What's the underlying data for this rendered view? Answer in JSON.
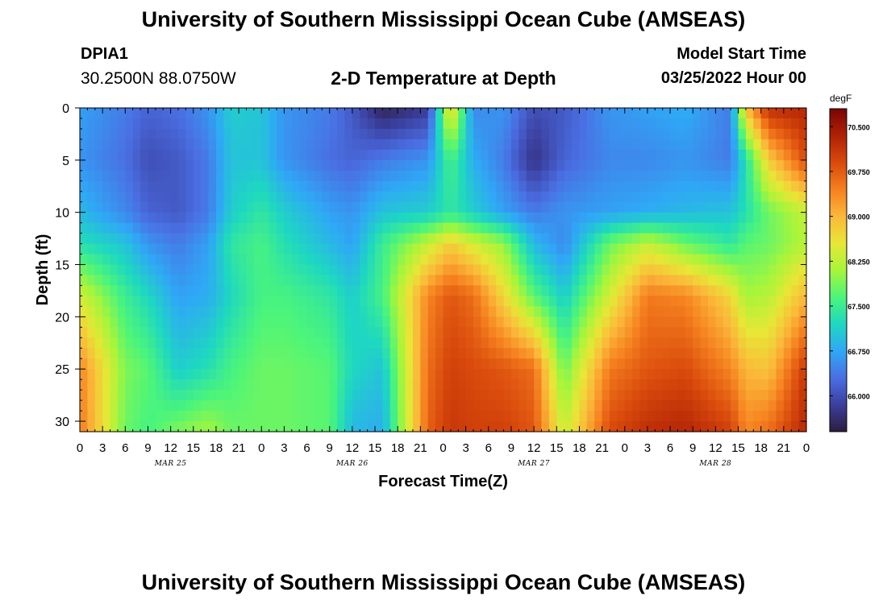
{
  "header": {
    "title": "University of Southern Mississippi Ocean Cube (AMSEAS)",
    "station_id": "DPIA1",
    "station_coords": "30.2500N  88.0750W",
    "plot_title": "2-D Temperature at Depth",
    "model_start_label": "Model Start Time",
    "model_start_value": "03/25/2022 Hour 00"
  },
  "footer": {
    "title": "University of Southern Mississippi Ocean Cube (AMSEAS)"
  },
  "chart_data": {
    "type": "heatmap",
    "title": "2-D Temperature at Depth",
    "xlabel": "Forecast Time(Z)",
    "ylabel": "Depth (ft)",
    "xlim": [
      0,
      96
    ],
    "ylim": [
      0,
      31
    ],
    "y_inverted": true,
    "x_tick_labels": [
      "0",
      "3",
      "6",
      "9",
      "12",
      "15",
      "18",
      "21",
      "0",
      "3",
      "6",
      "9",
      "12",
      "15",
      "18",
      "21",
      "0",
      "3",
      "6",
      "9",
      "12",
      "15",
      "18",
      "21",
      "0",
      "3",
      "6",
      "9",
      "12",
      "15",
      "18",
      "21",
      "0"
    ],
    "date_labels": [
      {
        "label": "MAR 25",
        "hour": 12
      },
      {
        "label": "MAR 26",
        "hour": 36
      },
      {
        "label": "MAR 27",
        "hour": 60
      },
      {
        "label": "MAR 28",
        "hour": 84
      }
    ],
    "y_ticks": [
      0,
      5,
      10,
      15,
      20,
      25,
      30
    ],
    "colorbar": {
      "unit": "degF",
      "min": 65.4,
      "max": 70.8,
      "ticks": [
        "66.000",
        "66.750",
        "67.500",
        "68.250",
        "69.000",
        "69.750",
        "70.500"
      ],
      "colors": [
        "#2d1e3e",
        "#3b3f9e",
        "#4a6fe3",
        "#2fa8f6",
        "#1ed8c0",
        "#4cf57a",
        "#a8f53a",
        "#e8e636",
        "#fbb83a",
        "#f5801f",
        "#d94a0c",
        "#b02106",
        "#7a0403"
      ]
    },
    "grid_hours": [
      0,
      6,
      9,
      13,
      17,
      20,
      24,
      27,
      33,
      36,
      40,
      46,
      49,
      52,
      56,
      60,
      64,
      70,
      75,
      80,
      86,
      88,
      91,
      96
    ],
    "grid_depths": [
      0,
      5,
      10,
      13,
      18,
      25,
      31
    ],
    "temperature_degF": [
      [
        66.7,
        66.4,
        66.2,
        66.3,
        66.6,
        67.1,
        67.0,
        66.6,
        66.4,
        66.1,
        65.5,
        65.8,
        68.8,
        66.5,
        66.6,
        66.0,
        66.1,
        66.6,
        66.7,
        66.8,
        66.4,
        68.9,
        70.2,
        70.3
      ],
      [
        66.6,
        66.3,
        66.0,
        66.1,
        66.4,
        67.0,
        67.0,
        66.6,
        66.3,
        66.2,
        66.4,
        66.6,
        67.6,
        66.8,
        66.4,
        65.7,
        66.2,
        66.5,
        66.5,
        66.6,
        66.4,
        67.3,
        68.8,
        69.9
      ],
      [
        66.9,
        66.5,
        66.2,
        66.1,
        66.4,
        67.1,
        67.4,
        67.1,
        66.7,
        66.6,
        67.0,
        67.1,
        67.4,
        67.1,
        66.7,
        66.4,
        66.6,
        66.7,
        66.8,
        66.9,
        67.0,
        67.3,
        67.8,
        68.3
      ],
      [
        67.3,
        67.0,
        66.6,
        66.4,
        66.7,
        67.4,
        67.6,
        67.3,
        66.9,
        66.7,
        67.5,
        68.3,
        68.8,
        68.4,
        68.0,
        66.9,
        66.5,
        67.8,
        68.3,
        67.8,
        67.4,
        67.7,
        67.8,
        68.2
      ],
      [
        68.4,
        67.5,
        67.2,
        66.7,
        66.8,
        67.2,
        67.6,
        67.6,
        67.4,
        67.1,
        67.6,
        69.4,
        69.8,
        69.6,
        68.7,
        67.7,
        67.1,
        68.4,
        69.5,
        69.4,
        68.7,
        68.1,
        68.2,
        69.0
      ],
      [
        69.4,
        67.9,
        67.7,
        67.1,
        67.3,
        67.6,
        67.8,
        67.8,
        67.7,
        67.2,
        67.0,
        69.6,
        70.0,
        69.9,
        69.8,
        69.6,
        67.8,
        69.5,
        69.8,
        69.9,
        69.4,
        69.0,
        68.9,
        70.1
      ],
      [
        69.5,
        67.8,
        67.6,
        67.9,
        68.1,
        67.8,
        67.8,
        67.8,
        67.7,
        66.9,
        66.8,
        69.7,
        70.1,
        70.0,
        70.0,
        69.8,
        68.3,
        69.9,
        70.2,
        70.3,
        70.0,
        69.4,
        69.6,
        70.3
      ]
    ]
  }
}
